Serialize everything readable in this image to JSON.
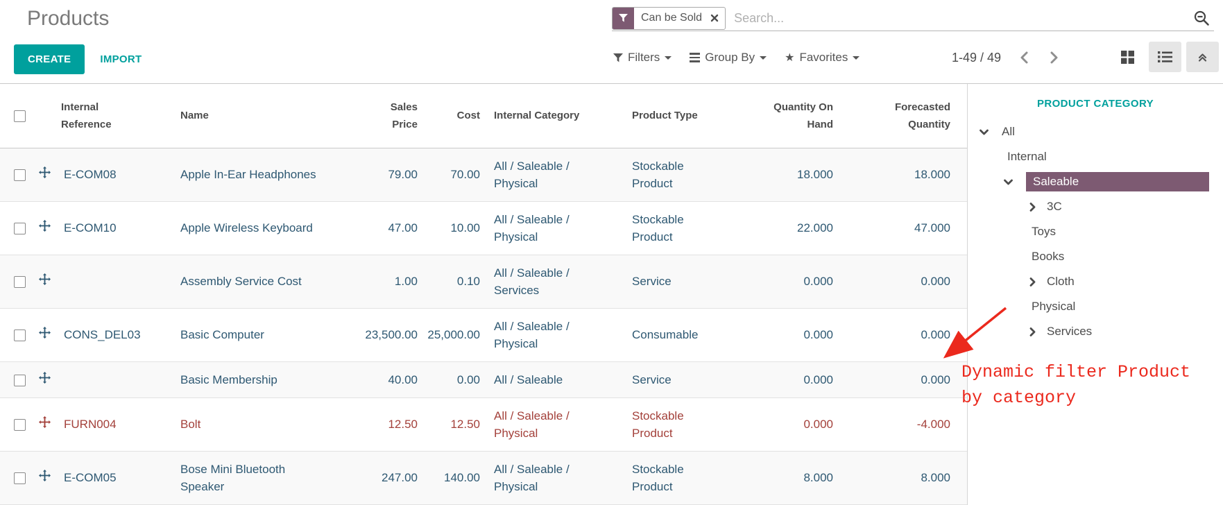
{
  "app": {
    "title": "Products"
  },
  "toolbar": {
    "create_label": "CREATE",
    "import_label": "IMPORT"
  },
  "search": {
    "facet_label": "Can be Sold",
    "placeholder": "Search..."
  },
  "menus": {
    "filters": "Filters",
    "group_by": "Group By",
    "favorites": "Favorites"
  },
  "pager": {
    "range": "1-49 / 49"
  },
  "table": {
    "columns": {
      "ref": "Internal Reference",
      "name": "Name",
      "price": "Sales Price",
      "cost": "Cost",
      "category": "Internal Category",
      "type": "Product Type",
      "qty": "Quantity On Hand",
      "forecast": "Forecasted Quantity"
    },
    "rows": [
      {
        "ref": "E-COM08",
        "name": "Apple In-Ear Headphones",
        "price": "79.00",
        "cost": "70.00",
        "category": "All / Saleable / Physical",
        "type": "Stockable Product",
        "qty": "18.000",
        "forecast": "18.000",
        "danger": false
      },
      {
        "ref": "E-COM10",
        "name": "Apple Wireless Keyboard",
        "price": "47.00",
        "cost": "10.00",
        "category": "All / Saleable / Physical",
        "type": "Stockable Product",
        "qty": "22.000",
        "forecast": "47.000",
        "danger": false
      },
      {
        "ref": "",
        "name": "Assembly Service Cost",
        "price": "1.00",
        "cost": "0.10",
        "category": "All / Saleable / Services",
        "type": "Service",
        "qty": "0.000",
        "forecast": "0.000",
        "danger": false
      },
      {
        "ref": "CONS_DEL03",
        "name": "Basic Computer",
        "price": "23,500.00",
        "cost": "25,000.00",
        "category": "All / Saleable / Physical",
        "type": "Consumable",
        "qty": "0.000",
        "forecast": "0.000",
        "danger": false
      },
      {
        "ref": "",
        "name": "Basic Membership",
        "price": "40.00",
        "cost": "0.00",
        "category": "All / Saleable",
        "type": "Service",
        "qty": "0.000",
        "forecast": "0.000",
        "danger": false
      },
      {
        "ref": "FURN004",
        "name": "Bolt",
        "price": "12.50",
        "cost": "12.50",
        "category": "All / Saleable / Physical",
        "type": "Stockable Product",
        "qty": "0.000",
        "forecast": "-4.000",
        "danger": true
      },
      {
        "ref": "E-COM05",
        "name": "Bose Mini Bluetooth Speaker",
        "price": "247.00",
        "cost": "140.00",
        "category": "All / Saleable / Physical",
        "type": "Stockable Product",
        "qty": "8.000",
        "forecast": "8.000",
        "danger": false
      }
    ]
  },
  "sidebar": {
    "title": "PRODUCT CATEGORY",
    "items": [
      {
        "label": "All",
        "level": 0,
        "chevron": "down",
        "selected": false
      },
      {
        "label": "Internal",
        "level": 1,
        "chevron": "none",
        "selected": false
      },
      {
        "label": "Saleable",
        "level": 1,
        "chevron": "down",
        "selected": true
      },
      {
        "label": "3C",
        "level": 2,
        "chevron": "right",
        "selected": false
      },
      {
        "label": "Toys",
        "level": 2,
        "chevron": "none",
        "selected": false
      },
      {
        "label": "Books",
        "level": 2,
        "chevron": "none",
        "selected": false
      },
      {
        "label": "Cloth",
        "level": 2,
        "chevron": "right",
        "selected": false
      },
      {
        "label": "Physical",
        "level": 2,
        "chevron": "none",
        "selected": false
      },
      {
        "label": "Services",
        "level": 2,
        "chevron": "right",
        "selected": false
      }
    ]
  },
  "annotation": {
    "text": "Dynamic filter Product by category"
  },
  "colors": {
    "primary_teal": "#00a09d",
    "facet_purple": "#7d5a72",
    "selected_category_purple": "#7d5a72",
    "row_text_slate": "#2e5872",
    "danger_red": "#a3403a",
    "annotation_red": "#eb291d"
  }
}
